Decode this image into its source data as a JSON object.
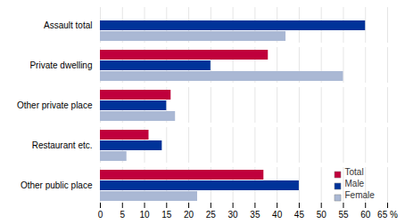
{
  "chart_data": {
    "type": "bar",
    "orientation": "horizontal",
    "categories": [
      "Other public place",
      "Restaurant etc.",
      "Other private place",
      "Private dwelling",
      "Assault total"
    ],
    "series": [
      {
        "name": "Total",
        "color": "#c0003c",
        "values": [
          37,
          11,
          16,
          38,
          null
        ]
      },
      {
        "name": "Male",
        "color": "#003399",
        "values": [
          45,
          14,
          15,
          25,
          60
        ]
      },
      {
        "name": "Female",
        "color": "#aab8d4",
        "values": [
          22,
          6,
          17,
          55,
          42
        ]
      }
    ],
    "xlim": [
      0,
      65
    ],
    "xticks": [
      0,
      5,
      10,
      15,
      20,
      25,
      30,
      35,
      40,
      45,
      50,
      55,
      60,
      {
        "value": 65,
        "label": "65 %"
      }
    ],
    "grid": true,
    "legend": "lower right"
  }
}
